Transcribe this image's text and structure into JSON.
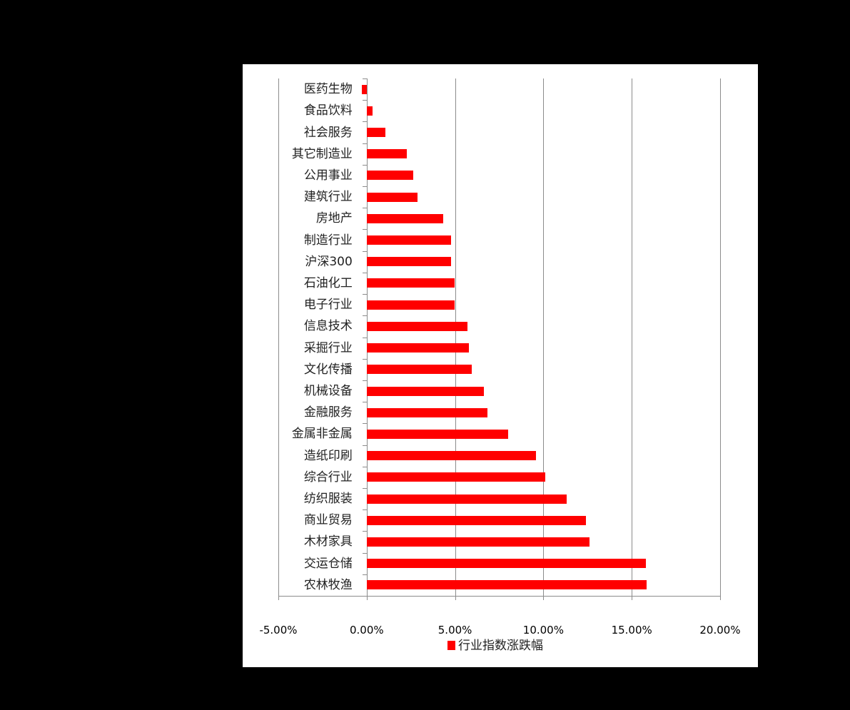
{
  "chart_data": {
    "type": "bar",
    "orientation": "horizontal",
    "title": "",
    "xlabel": "",
    "ylabel": "",
    "xlim": [
      -5,
      20
    ],
    "x_ticks": [
      "-5.00%",
      "0.00%",
      "5.00%",
      "10.00%",
      "15.00%",
      "20.00%"
    ],
    "grid": "vertical major gridlines",
    "legend_position": "bottom",
    "categories": [
      "医药生物",
      "食品饮料",
      "社会服务",
      "其它制造业",
      "公用事业",
      "建筑行业",
      "房地产",
      "制造行业",
      "沪深300",
      "石油化工",
      "电子行业",
      "信息技术",
      "采掘行业",
      "文化传播",
      "机械设备",
      "金融服务",
      "金属非金属",
      "造纸印刷",
      "综合行业",
      "纺织服装",
      "商业贸易",
      "木材家具",
      "交运仓储",
      "农林牧渔"
    ],
    "series": [
      {
        "name": "行业指数涨跌幅",
        "color": "#ff0000",
        "unit": "%",
        "values": [
          -0.28,
          0.32,
          1.05,
          2.26,
          2.62,
          2.86,
          4.31,
          4.76,
          4.76,
          4.96,
          4.96,
          5.7,
          5.77,
          5.93,
          6.65,
          6.85,
          8.0,
          9.6,
          10.1,
          11.3,
          12.4,
          12.6,
          15.8,
          15.85
        ]
      }
    ]
  },
  "legend": {
    "label": "行业指数涨跌幅",
    "color": "#ff0000"
  }
}
